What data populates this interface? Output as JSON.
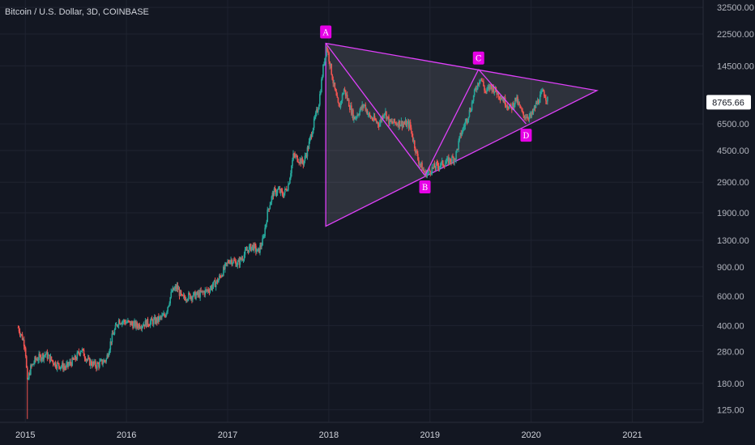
{
  "header": {
    "title": "Bitcoin / U.S. Dollar, 3D, COINBASE"
  },
  "colors": {
    "background": "#131722",
    "grid": "#1f2330",
    "up": "#26a69a",
    "down": "#ef5350",
    "pattern": "#e040fb",
    "pattern_fill": "rgba(190,190,200,0.16)",
    "label_bg": "#e600e6"
  },
  "chart_data": {
    "type": "candlestick",
    "title": "Bitcoin / U.S. Dollar, 3D, COINBASE",
    "y_scale": "log",
    "ylim": [
      105,
      36000
    ],
    "xlim": [
      2014.75,
      2021.7
    ],
    "y_ticks": [
      "32500.00",
      "22500.00",
      "14500.00",
      "6500.00",
      "4500.00",
      "2900.00",
      "1900.00",
      "1300.00",
      "900.00",
      "600.00",
      "400.00",
      "280.00",
      "180.00",
      "125.00"
    ],
    "x_ticks": [
      "2015",
      "2016",
      "2017",
      "2018",
      "2019",
      "2020",
      "2021"
    ],
    "last_price": "8765.66",
    "price_path": [
      [
        2014.93,
        390
      ],
      [
        2014.97,
        340
      ],
      [
        2015.0,
        300
      ],
      [
        2015.02,
        180
      ],
      [
        2015.05,
        220
      ],
      [
        2015.1,
        250
      ],
      [
        2015.2,
        270
      ],
      [
        2015.3,
        235
      ],
      [
        2015.4,
        225
      ],
      [
        2015.5,
        255
      ],
      [
        2015.55,
        290
      ],
      [
        2015.62,
        245
      ],
      [
        2015.7,
        230
      ],
      [
        2015.8,
        250
      ],
      [
        2015.85,
        330
      ],
      [
        2015.92,
        430
      ],
      [
        2016.0,
        420
      ],
      [
        2016.1,
        400
      ],
      [
        2016.2,
        415
      ],
      [
        2016.3,
        430
      ],
      [
        2016.38,
        460
      ],
      [
        2016.45,
        640
      ],
      [
        2016.5,
        680
      ],
      [
        2016.55,
        580
      ],
      [
        2016.6,
        600
      ],
      [
        2016.7,
        610
      ],
      [
        2016.8,
        650
      ],
      [
        2016.9,
        740
      ],
      [
        2017.0,
        950
      ],
      [
        2017.02,
        1000
      ],
      [
        2017.1,
        940
      ],
      [
        2017.2,
        1150
      ],
      [
        2017.25,
        1200
      ],
      [
        2017.3,
        1100
      ],
      [
        2017.35,
        1300
      ],
      [
        2017.4,
        2000
      ],
      [
        2017.45,
        2500
      ],
      [
        2017.5,
        2600
      ],
      [
        2017.55,
        2450
      ],
      [
        2017.6,
        2800
      ],
      [
        2017.65,
        4200
      ],
      [
        2017.7,
        4000
      ],
      [
        2017.75,
        3800
      ],
      [
        2017.8,
        4800
      ],
      [
        2017.85,
        6500
      ],
      [
        2017.9,
        8500
      ],
      [
        2017.95,
        15000
      ],
      [
        2017.98,
        19000
      ],
      [
        2018.02,
        14000
      ],
      [
        2018.05,
        11000
      ],
      [
        2018.1,
        8000
      ],
      [
        2018.15,
        10500
      ],
      [
        2018.25,
        7000
      ],
      [
        2018.35,
        8500
      ],
      [
        2018.4,
        7200
      ],
      [
        2018.5,
        6500
      ],
      [
        2018.55,
        7800
      ],
      [
        2018.6,
        6600
      ],
      [
        2018.7,
        6600
      ],
      [
        2018.8,
        6400
      ],
      [
        2018.88,
        4000
      ],
      [
        2018.95,
        3250
      ],
      [
        2019.05,
        3600
      ],
      [
        2019.15,
        3800
      ],
      [
        2019.25,
        4100
      ],
      [
        2019.3,
        5500
      ],
      [
        2019.4,
        8000
      ],
      [
        2019.45,
        10500
      ],
      [
        2019.5,
        12500
      ],
      [
        2019.55,
        10000
      ],
      [
        2019.6,
        11000
      ],
      [
        2019.7,
        9500
      ],
      [
        2019.8,
        8000
      ],
      [
        2019.85,
        9200
      ],
      [
        2019.92,
        7300
      ],
      [
        2020.0,
        7200
      ],
      [
        2020.05,
        8500
      ],
      [
        2020.12,
        10200
      ],
      [
        2020.17,
        8765
      ]
    ],
    "candle_seed": 7,
    "pattern": {
      "points": [
        {
          "label": "A",
          "x": 2017.97,
          "y": 19800
        },
        {
          "label": "B",
          "x": 2018.95,
          "y": 3180
        },
        {
          "label": "C",
          "x": 2019.48,
          "y": 13800
        },
        {
          "label": "D",
          "x": 2019.95,
          "y": 6500
        }
      ],
      "triangle_apex": {
        "x": 2020.65,
        "y": 10300
      },
      "triangle_base_bottom": {
        "x": 2017.97,
        "y": 1580
      }
    }
  }
}
